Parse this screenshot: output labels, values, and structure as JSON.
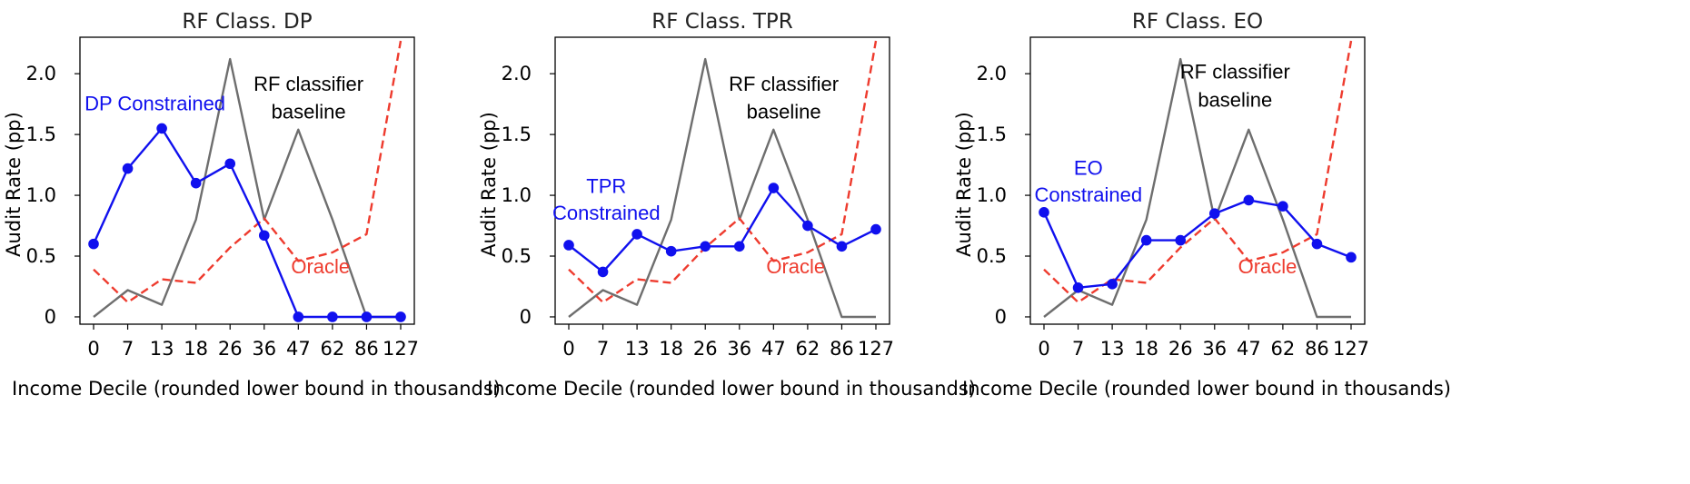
{
  "chart_data": [
    {
      "type": "line",
      "title": "RF Class. DP",
      "xlabel": "Income Decile (rounded lower bound in thousands)",
      "ylabel": "Audit Rate (pp)",
      "categories": [
        "0",
        "7",
        "13",
        "18",
        "26",
        "36",
        "47",
        "62",
        "86",
        "127"
      ],
      "yticks": [
        "0",
        "0.5",
        "1.0",
        "1.5",
        "2.0"
      ],
      "ytick_values": [
        0,
        0.5,
        1.0,
        1.5,
        2.0
      ],
      "ylim": [
        -0.06,
        2.3
      ],
      "series": [
        {
          "name": "RF classifier baseline",
          "color": "#6e6e6e",
          "style": "solid",
          "markers": false,
          "values": [
            0,
            0.22,
            0.1,
            0.8,
            2.12,
            0.8,
            1.54,
            0.8,
            0,
            0
          ]
        },
        {
          "name": "Oracle",
          "color": "#ee3b2e",
          "style": "dashed",
          "markers": false,
          "values": [
            0.39,
            0.12,
            0.31,
            0.28,
            0.57,
            0.81,
            0.46,
            0.53,
            0.68,
            2.27
          ]
        },
        {
          "name": "DP Constrained",
          "color": "#1010ee",
          "style": "solid",
          "markers": true,
          "values": [
            0.6,
            1.22,
            1.55,
            1.1,
            1.26,
            0.67,
            0,
            0,
            0,
            0
          ]
        }
      ],
      "annotations": [
        {
          "text": "DP Constrained",
          "color": "#1010ee",
          "x": 1.8,
          "y": 1.7
        },
        {
          "text": "RF classifier",
          "color": "#000000",
          "x": 6.3,
          "y": 1.86
        },
        {
          "text": "baseline",
          "color": "#000000",
          "x": 6.3,
          "y": 1.63
        },
        {
          "text": "Oracle",
          "color": "#ee3b2e",
          "x": 6.65,
          "y": 0.36
        }
      ]
    },
    {
      "type": "line",
      "title": "RF Class. TPR",
      "xlabel": "Income Decile (rounded lower bound in thousands)",
      "ylabel": "Audit Rate (pp)",
      "categories": [
        "0",
        "7",
        "13",
        "18",
        "26",
        "36",
        "47",
        "62",
        "86",
        "127"
      ],
      "yticks": [
        "0",
        "0.5",
        "1.0",
        "1.5",
        "2.0"
      ],
      "ytick_values": [
        0,
        0.5,
        1.0,
        1.5,
        2.0
      ],
      "ylim": [
        -0.06,
        2.3
      ],
      "series": [
        {
          "name": "RF classifier baseline",
          "color": "#6e6e6e",
          "style": "solid",
          "markers": false,
          "values": [
            0,
            0.22,
            0.1,
            0.8,
            2.12,
            0.8,
            1.54,
            0.8,
            0,
            0
          ]
        },
        {
          "name": "Oracle",
          "color": "#ee3b2e",
          "style": "dashed",
          "markers": false,
          "values": [
            0.39,
            0.12,
            0.31,
            0.28,
            0.57,
            0.81,
            0.46,
            0.53,
            0.68,
            2.27
          ]
        },
        {
          "name": "TPR Constrained",
          "color": "#1010ee",
          "style": "solid",
          "markers": true,
          "values": [
            0.59,
            0.37,
            0.68,
            0.54,
            0.58,
            0.58,
            1.06,
            0.75,
            0.58,
            0.72
          ]
        }
      ],
      "annotations": [
        {
          "text": "TPR",
          "color": "#1010ee",
          "x": 1.1,
          "y": 1.02
        },
        {
          "text": "Constrained",
          "color": "#1010ee",
          "x": 1.1,
          "y": 0.8
        },
        {
          "text": "RF classifier",
          "color": "#000000",
          "x": 6.3,
          "y": 1.86
        },
        {
          "text": "baseline",
          "color": "#000000",
          "x": 6.3,
          "y": 1.63
        },
        {
          "text": "Oracle",
          "color": "#ee3b2e",
          "x": 6.65,
          "y": 0.36
        }
      ]
    },
    {
      "type": "line",
      "title": "RF Class. EO",
      "xlabel": "Income Decile (rounded lower bound in thousands)",
      "ylabel": "Audit Rate (pp)",
      "categories": [
        "0",
        "7",
        "13",
        "18",
        "26",
        "36",
        "47",
        "62",
        "86",
        "127"
      ],
      "yticks": [
        "0",
        "0.5",
        "1.0",
        "1.5",
        "2.0"
      ],
      "ytick_values": [
        0,
        0.5,
        1.0,
        1.5,
        2.0
      ],
      "ylim": [
        -0.06,
        2.3
      ],
      "series": [
        {
          "name": "RF classifier baseline",
          "color": "#6e6e6e",
          "style": "solid",
          "markers": false,
          "values": [
            0,
            0.22,
            0.1,
            0.8,
            2.12,
            0.8,
            1.54,
            0.8,
            0,
            0
          ]
        },
        {
          "name": "Oracle",
          "color": "#ee3b2e",
          "style": "dashed",
          "markers": false,
          "values": [
            0.39,
            0.12,
            0.31,
            0.28,
            0.57,
            0.81,
            0.46,
            0.53,
            0.68,
            2.27
          ]
        },
        {
          "name": "EO Constrained",
          "color": "#1010ee",
          "style": "solid",
          "markers": true,
          "values": [
            0.86,
            0.24,
            0.27,
            0.63,
            0.63,
            0.85,
            0.96,
            0.91,
            0.6,
            0.49
          ]
        }
      ],
      "annotations": [
        {
          "text": "EO",
          "color": "#1010ee",
          "x": 1.3,
          "y": 1.17
        },
        {
          "text": "Constrained",
          "color": "#1010ee",
          "x": 1.3,
          "y": 0.95
        },
        {
          "text": "RF classifier",
          "color": "#000000",
          "x": 5.6,
          "y": 1.96
        },
        {
          "text": "baseline",
          "color": "#000000",
          "x": 5.6,
          "y": 1.73
        },
        {
          "text": "Oracle",
          "color": "#ee3b2e",
          "x": 6.55,
          "y": 0.36
        }
      ]
    }
  ]
}
